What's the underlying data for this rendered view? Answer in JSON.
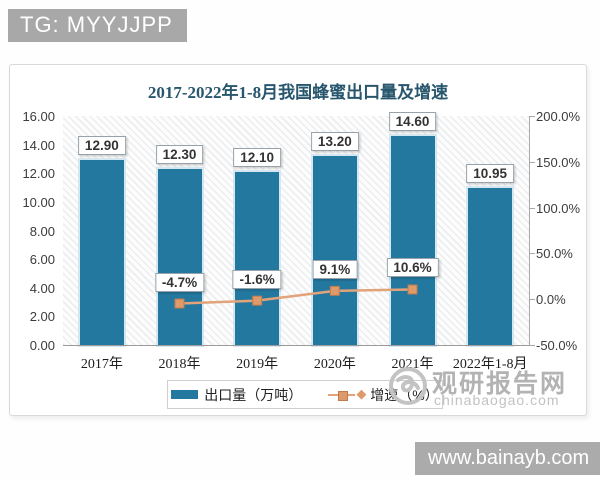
{
  "overlays": {
    "top_badge": "TG: MYYJJPP",
    "bottom_badge": "www.bainayb.com",
    "watermark_name": "观研报告网",
    "watermark_domain": "chinabaogao.com"
  },
  "chart_data": {
    "type": "bar",
    "title": "2017-2022年1-8月我国蜂蜜出口量及增速",
    "title_color": "#27566d",
    "categories": [
      "2017年",
      "2018年",
      "2019年",
      "2020年",
      "2021年",
      "2022年1-8月"
    ],
    "series": [
      {
        "name": "出口量（万吨）",
        "type": "bar",
        "axis": "left",
        "values": [
          12.9,
          12.3,
          12.1,
          13.2,
          14.6,
          10.95
        ],
        "labels": [
          "12.90",
          "12.30",
          "12.10",
          "13.20",
          "14.60",
          "10.95"
        ],
        "color": "#23789f"
      },
      {
        "name": "增速（%）",
        "type": "line",
        "axis": "right",
        "values": [
          null,
          -4.7,
          -1.6,
          9.1,
          10.6,
          null
        ],
        "labels": [
          null,
          "-4.7%",
          "-1.6%",
          "9.1%",
          "10.6%",
          null
        ],
        "color": "#e2a37b",
        "marker_color": "#df9a6b",
        "marker_border": "#bc7c50"
      }
    ],
    "left_axis": {
      "min": 0,
      "max": 16,
      "ticks": [
        "16.00",
        "14.00",
        "12.00",
        "10.00",
        "8.00",
        "6.00",
        "4.00",
        "2.00",
        "0.00"
      ]
    },
    "right_axis": {
      "min": -50,
      "max": 200,
      "ticks": [
        "200.0%",
        "150.0%",
        "100.0%",
        "50.0%",
        "0.0%",
        "-50.0%"
      ]
    },
    "legend": {
      "position": "bottom",
      "items": [
        "出口量（万吨）",
        "增速（%）"
      ]
    },
    "grid": false,
    "plot_background": "diagonal-hatch"
  }
}
